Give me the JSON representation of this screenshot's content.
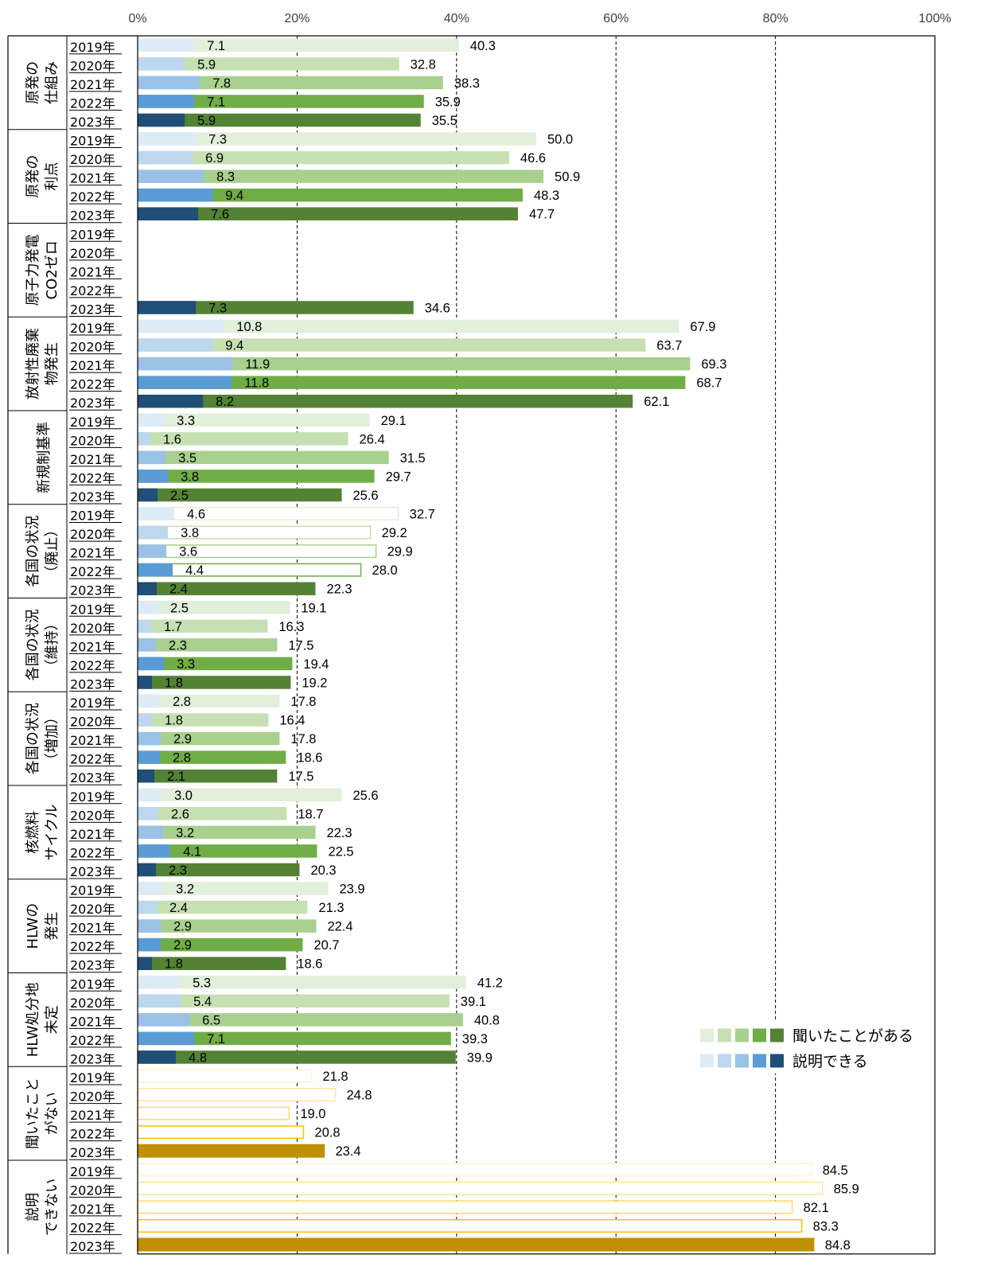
{
  "chart_data": {
    "type": "bar",
    "orientation": "horizontal",
    "xlim": [
      0,
      100
    ],
    "x_ticks": [
      "0%",
      "20%",
      "40%",
      "60%",
      "80%",
      "100%"
    ],
    "grid": "vertical dashed",
    "legend_position": "bottom-right",
    "legend": {
      "heard_label": "聞いたことがある",
      "explain_label": "説明できる"
    },
    "years": [
      "2019年",
      "2020年",
      "2021年",
      "2022年",
      "2023年"
    ],
    "colors": {
      "heard": [
        "#e2efda",
        "#c6e0b4",
        "#a9d08e",
        "#70ad47",
        "#548235"
      ],
      "explain": [
        "#ddebf7",
        "#bdd7ee",
        "#9bc2e6",
        "#5b9bd5",
        "#1f4e78"
      ],
      "never_heard_fill": [
        "#ffffff",
        "#ffffff",
        "#ffffff",
        "#ffffff",
        "#bf9000"
      ],
      "never_heard_outline": [
        "#fff2cc",
        "#ffe699",
        "#ffd966",
        "#ffc000",
        "#bf9000"
      ]
    },
    "groups": [
      {
        "label_lines": [
          "原発の",
          "仕組み"
        ],
        "kind": "heard",
        "heard": [
          40.3,
          32.8,
          38.3,
          35.9,
          35.5
        ],
        "explain": [
          7.1,
          5.9,
          7.8,
          7.1,
          5.9
        ]
      },
      {
        "label_lines": [
          "原発の",
          "利点"
        ],
        "kind": "heard",
        "heard": [
          50.0,
          46.6,
          50.9,
          48.3,
          47.7
        ],
        "explain": [
          7.3,
          6.9,
          8.3,
          9.4,
          7.6
        ]
      },
      {
        "label_lines": [
          "原子力発電",
          "CO2ゼロ"
        ],
        "kind": "heard",
        "heard": [
          null,
          null,
          null,
          null,
          34.6
        ],
        "explain": [
          null,
          null,
          null,
          null,
          7.3
        ]
      },
      {
        "label_lines": [
          "放射性廃棄",
          "物発生"
        ],
        "kind": "heard",
        "heard": [
          67.9,
          63.7,
          69.3,
          68.7,
          62.1
        ],
        "explain": [
          10.8,
          9.4,
          11.9,
          11.8,
          8.2
        ]
      },
      {
        "label_lines": [
          "新規制基準"
        ],
        "kind": "heard",
        "heard": [
          29.1,
          26.4,
          31.5,
          29.7,
          25.6
        ],
        "explain": [
          3.3,
          1.6,
          3.5,
          3.8,
          2.5
        ]
      },
      {
        "label_lines": [
          "各国の状況",
          "（廃止）"
        ],
        "kind": "heard_outline",
        "heard": [
          32.7,
          29.2,
          29.9,
          28.0,
          22.3
        ],
        "explain": [
          4.6,
          3.8,
          3.6,
          4.4,
          2.4
        ]
      },
      {
        "label_lines": [
          "各国の状況",
          "（維持）"
        ],
        "kind": "heard",
        "heard": [
          19.1,
          16.3,
          17.5,
          19.4,
          19.2
        ],
        "explain": [
          2.5,
          1.7,
          2.3,
          3.3,
          1.8
        ]
      },
      {
        "label_lines": [
          "各国の状況",
          "（増加）"
        ],
        "kind": "heard",
        "heard": [
          17.8,
          16.4,
          17.8,
          18.6,
          17.5
        ],
        "explain": [
          2.8,
          1.8,
          2.9,
          2.8,
          2.1
        ]
      },
      {
        "label_lines": [
          "核燃料",
          "サイクル"
        ],
        "kind": "heard",
        "heard": [
          25.6,
          18.7,
          22.3,
          22.5,
          20.3
        ],
        "explain": [
          3.0,
          2.6,
          3.2,
          4.1,
          2.3
        ]
      },
      {
        "label_lines": [
          "HLWの",
          "発生"
        ],
        "kind": "heard",
        "heard": [
          23.9,
          21.3,
          22.4,
          20.7,
          18.6
        ],
        "explain": [
          3.2,
          2.4,
          2.9,
          2.9,
          1.8
        ]
      },
      {
        "label_lines": [
          "HLW処分地",
          "未定"
        ],
        "kind": "heard",
        "heard": [
          41.2,
          39.1,
          40.8,
          39.3,
          39.9
        ],
        "explain": [
          5.3,
          5.4,
          6.5,
          7.1,
          4.8
        ]
      },
      {
        "label_lines": [
          "聞いたこと",
          "がない"
        ],
        "kind": "single",
        "heard": [
          21.8,
          24.8,
          19.0,
          20.8,
          23.4
        ],
        "explain": [
          null,
          null,
          null,
          null,
          null
        ]
      },
      {
        "label_lines": [
          "説明",
          "できない"
        ],
        "kind": "single",
        "heard": [
          84.5,
          85.9,
          82.1,
          83.3,
          84.8
        ],
        "explain": [
          null,
          null,
          null,
          null,
          null
        ]
      }
    ]
  }
}
